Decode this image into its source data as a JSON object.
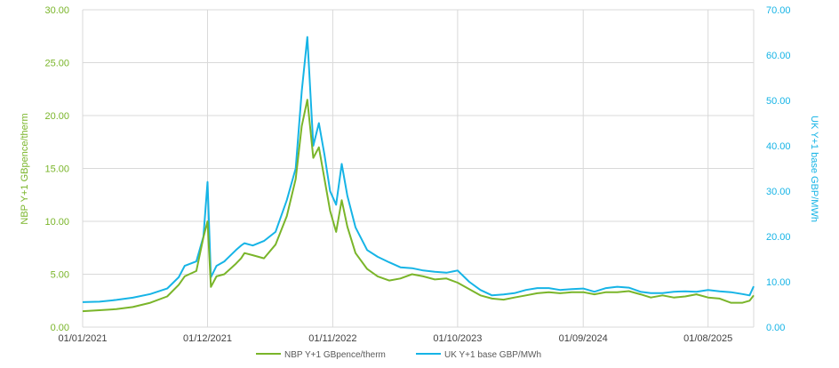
{
  "chart_data": {
    "type": "line",
    "title": "",
    "xlabel": "",
    "ylabel_left": "NBP Y+1 GBpence/therm",
    "ylabel_right": "UK Y+1 base GBP/MWh",
    "x_range": [
      "01/01/2021",
      "01/12/2025"
    ],
    "x_tick_labels": [
      "01/01/2021",
      "01/12/2021",
      "01/11/2022",
      "01/10/2023",
      "01/09/2024",
      "01/08/2025"
    ],
    "ylim_left": [
      0,
      30
    ],
    "ylim_right": [
      0,
      70
    ],
    "y_left_tick_labels": [
      "0.00",
      "5.00",
      "10.00",
      "15.00",
      "20.00",
      "25.00",
      "30.00"
    ],
    "y_right_tick_labels": [
      "0.00",
      "10.00",
      "20.00",
      "30.00",
      "40.00",
      "50.00",
      "60.00",
      "70.00"
    ],
    "grid": true,
    "legend_position": "bottom",
    "colors": {
      "nbp": "#7ab52a",
      "uk": "#16b4e6",
      "left_axis_text": "#7ab52a",
      "right_axis_text": "#16b4e6",
      "x_axis_text": "#404040",
      "grid": "#d9d9d9"
    },
    "series": [
      {
        "name": "NBP Y+1 GBpence/therm",
        "axis": "left",
        "x": [
          "2021-01-01",
          "2021-02-15",
          "2021-04-01",
          "2021-05-15",
          "2021-07-01",
          "2021-08-15",
          "2021-09-15",
          "2021-10-01",
          "2021-11-01",
          "2021-11-20",
          "2021-12-01",
          "2021-12-10",
          "2021-12-25",
          "2022-01-15",
          "2022-02-15",
          "2022-03-01",
          "2022-03-10",
          "2022-04-01",
          "2022-05-01",
          "2022-06-01",
          "2022-07-01",
          "2022-07-25",
          "2022-08-10",
          "2022-08-25",
          "2022-09-10",
          "2022-09-25",
          "2022-10-10",
          "2022-10-25",
          "2022-11-10",
          "2022-11-25",
          "2022-12-10",
          "2023-01-01",
          "2023-02-01",
          "2023-03-01",
          "2023-04-01",
          "2023-05-01",
          "2023-06-01",
          "2023-07-01",
          "2023-08-01",
          "2023-09-01",
          "2023-10-01",
          "2023-11-01",
          "2023-12-01",
          "2024-01-01",
          "2024-02-01",
          "2024-03-01",
          "2024-04-01",
          "2024-05-01",
          "2024-06-01",
          "2024-07-01",
          "2024-08-01",
          "2024-09-01",
          "2024-10-01",
          "2024-11-01",
          "2024-12-01",
          "2025-01-01",
          "2025-02-01",
          "2025-03-01",
          "2025-04-01",
          "2025-05-01",
          "2025-06-01",
          "2025-07-01",
          "2025-08-01",
          "2025-09-01",
          "2025-10-01",
          "2025-11-01",
          "2025-11-20",
          "2025-12-01"
        ],
        "values": [
          1.5,
          1.6,
          1.7,
          1.9,
          2.3,
          2.9,
          4.0,
          4.8,
          5.3,
          8.5,
          10.0,
          3.8,
          4.8,
          5.0,
          6.0,
          6.5,
          7.0,
          6.8,
          6.5,
          7.8,
          10.5,
          14.0,
          19.0,
          21.5,
          16.0,
          17.0,
          14.0,
          11.0,
          9.0,
          12.0,
          9.5,
          7.0,
          5.5,
          4.8,
          4.4,
          4.6,
          5.0,
          4.8,
          4.5,
          4.6,
          4.2,
          3.6,
          3.0,
          2.7,
          2.6,
          2.8,
          3.0,
          3.2,
          3.3,
          3.2,
          3.3,
          3.3,
          3.1,
          3.3,
          3.3,
          3.4,
          3.1,
          2.8,
          3.0,
          2.8,
          2.9,
          3.1,
          2.8,
          2.7,
          2.3,
          2.3,
          2.5,
          3.0
        ]
      },
      {
        "name": "UK Y+1 base GBP/MWh",
        "axis": "right",
        "x": [
          "2021-01-01",
          "2021-02-15",
          "2021-04-01",
          "2021-05-15",
          "2021-07-01",
          "2021-08-15",
          "2021-09-15",
          "2021-10-01",
          "2021-11-01",
          "2021-11-20",
          "2021-12-01",
          "2021-12-10",
          "2021-12-25",
          "2022-01-15",
          "2022-02-15",
          "2022-03-01",
          "2022-03-10",
          "2022-04-01",
          "2022-05-01",
          "2022-06-01",
          "2022-07-01",
          "2022-07-25",
          "2022-08-10",
          "2022-08-25",
          "2022-09-10",
          "2022-09-25",
          "2022-10-10",
          "2022-10-25",
          "2022-11-10",
          "2022-11-25",
          "2022-12-10",
          "2023-01-01",
          "2023-02-01",
          "2023-03-01",
          "2023-04-01",
          "2023-05-01",
          "2023-06-01",
          "2023-07-01",
          "2023-08-01",
          "2023-09-01",
          "2023-10-01",
          "2023-11-01",
          "2023-12-01",
          "2024-01-01",
          "2024-02-01",
          "2024-03-01",
          "2024-04-01",
          "2024-05-01",
          "2024-06-01",
          "2024-07-01",
          "2024-08-01",
          "2024-09-01",
          "2024-10-01",
          "2024-11-01",
          "2024-12-01",
          "2025-01-01",
          "2025-02-01",
          "2025-03-01",
          "2025-04-01",
          "2025-05-01",
          "2025-06-01",
          "2025-07-01",
          "2025-08-01",
          "2025-09-01",
          "2025-10-01",
          "2025-11-01",
          "2025-11-20",
          "2025-12-01"
        ],
        "values": [
          5.5,
          5.6,
          6.0,
          6.5,
          7.3,
          8.5,
          11.0,
          13.5,
          14.5,
          20.0,
          32.0,
          11.0,
          13.5,
          14.5,
          17.0,
          18.0,
          18.5,
          18.0,
          19.0,
          21.0,
          28.0,
          35.0,
          52.0,
          64.0,
          40.0,
          45.0,
          38.0,
          30.0,
          27.0,
          36.0,
          29.0,
          22.0,
          17.0,
          15.5,
          14.3,
          13.2,
          13.0,
          12.5,
          12.2,
          12.0,
          12.5,
          10.0,
          8.2,
          7.0,
          7.2,
          7.5,
          8.2,
          8.6,
          8.6,
          8.2,
          8.4,
          8.5,
          7.8,
          8.6,
          8.9,
          8.7,
          7.8,
          7.5,
          7.5,
          7.8,
          7.9,
          7.8,
          8.2,
          7.9,
          7.7,
          7.3,
          7.0,
          9.0
        ]
      }
    ]
  }
}
